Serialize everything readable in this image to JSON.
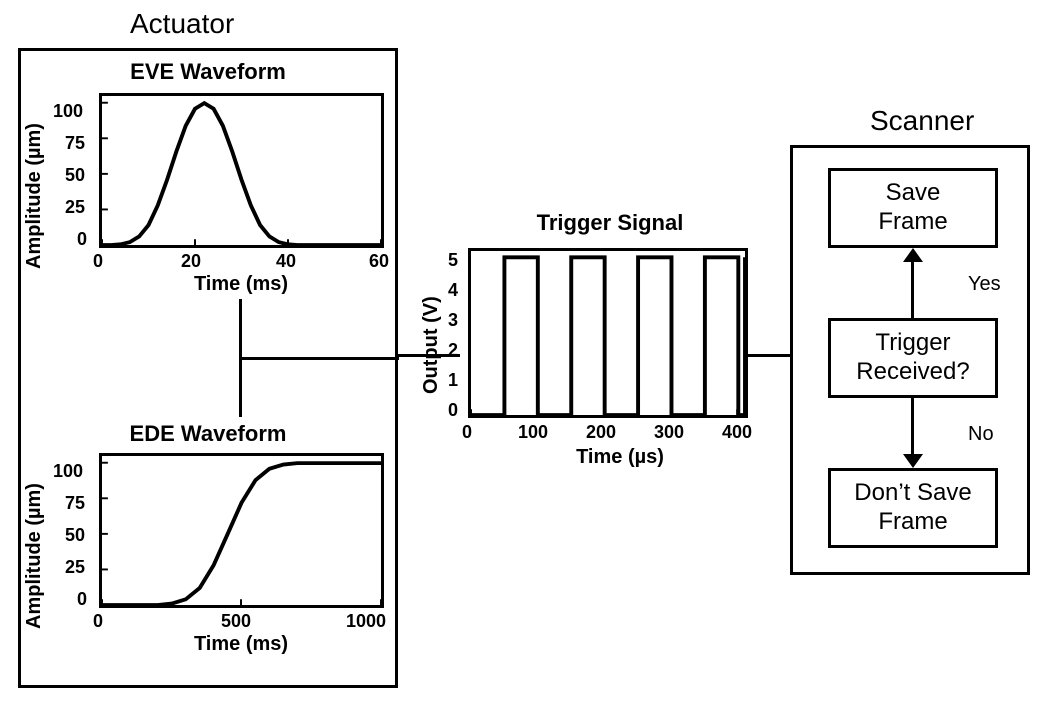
{
  "actuator": {
    "title": "Actuator",
    "eve": {
      "title": "EVE Waveform",
      "y_label": "Amplitude (µm)",
      "x_label": "Time (ms)",
      "y_ticks": [
        0,
        25,
        50,
        75,
        100
      ],
      "x_ticks": [
        0,
        20,
        40,
        60
      ],
      "xlim": [
        0,
        60
      ],
      "ylim": [
        0,
        105
      ],
      "line_color": "#000000",
      "line_width": 4,
      "background": "#ffffff",
      "border_color": "#000000",
      "points": [
        [
          0,
          0
        ],
        [
          2,
          0
        ],
        [
          4,
          0.5
        ],
        [
          6,
          2
        ],
        [
          8,
          6
        ],
        [
          10,
          14
        ],
        [
          12,
          28
        ],
        [
          14,
          46
        ],
        [
          16,
          66
        ],
        [
          18,
          84
        ],
        [
          20,
          96
        ],
        [
          22,
          100
        ],
        [
          24,
          96
        ],
        [
          26,
          84
        ],
        [
          28,
          66
        ],
        [
          30,
          46
        ],
        [
          32,
          28
        ],
        [
          34,
          14
        ],
        [
          36,
          6
        ],
        [
          38,
          2
        ],
        [
          40,
          0.5
        ],
        [
          42,
          0
        ],
        [
          60,
          0
        ]
      ]
    },
    "ede": {
      "title": "EDE Waveform",
      "y_label": "Amplitude (µm)",
      "x_label": "Time (ms)",
      "y_ticks": [
        0,
        25,
        50,
        75,
        100
      ],
      "x_ticks": [
        0,
        500,
        1000
      ],
      "xlim": [
        0,
        1000
      ],
      "ylim": [
        0,
        105
      ],
      "line_color": "#000000",
      "line_width": 4,
      "background": "#ffffff",
      "border_color": "#000000",
      "points": [
        [
          0,
          0
        ],
        [
          200,
          0
        ],
        [
          250,
          1
        ],
        [
          300,
          4
        ],
        [
          350,
          12
        ],
        [
          400,
          28
        ],
        [
          450,
          50
        ],
        [
          500,
          72
        ],
        [
          550,
          88
        ],
        [
          600,
          96
        ],
        [
          650,
          99
        ],
        [
          700,
          100
        ],
        [
          1000,
          100
        ]
      ]
    }
  },
  "trigger": {
    "title": "Trigger Signal",
    "y_label": "Output (V)",
    "x_label": "Time (µs)",
    "y_ticks": [
      0,
      1,
      2,
      3,
      4,
      5
    ],
    "x_ticks": [
      0,
      100,
      200,
      300,
      400
    ],
    "xlim": [
      0,
      410
    ],
    "ylim": [
      0,
      5.2
    ],
    "line_color": "#000000",
    "line_width": 4,
    "background": "#ffffff",
    "border_color": "#000000",
    "pulses": {
      "high": 5.0,
      "low": 0.0,
      "edges": [
        0,
        50,
        100,
        150,
        200,
        250,
        300,
        350,
        400,
        410
      ]
    }
  },
  "scanner": {
    "title": "Scanner",
    "boxes": {
      "save": "Save\nFrame",
      "trigger": "Trigger\nReceived?",
      "dontsave": "Don’t Save\nFrame"
    },
    "labels": {
      "yes": "Yes",
      "no": "No"
    },
    "box_border": "#000000",
    "box_bg": "#ffffff",
    "font_size": 24
  },
  "colors": {
    "page_bg": "#ffffff",
    "line": "#000000"
  }
}
